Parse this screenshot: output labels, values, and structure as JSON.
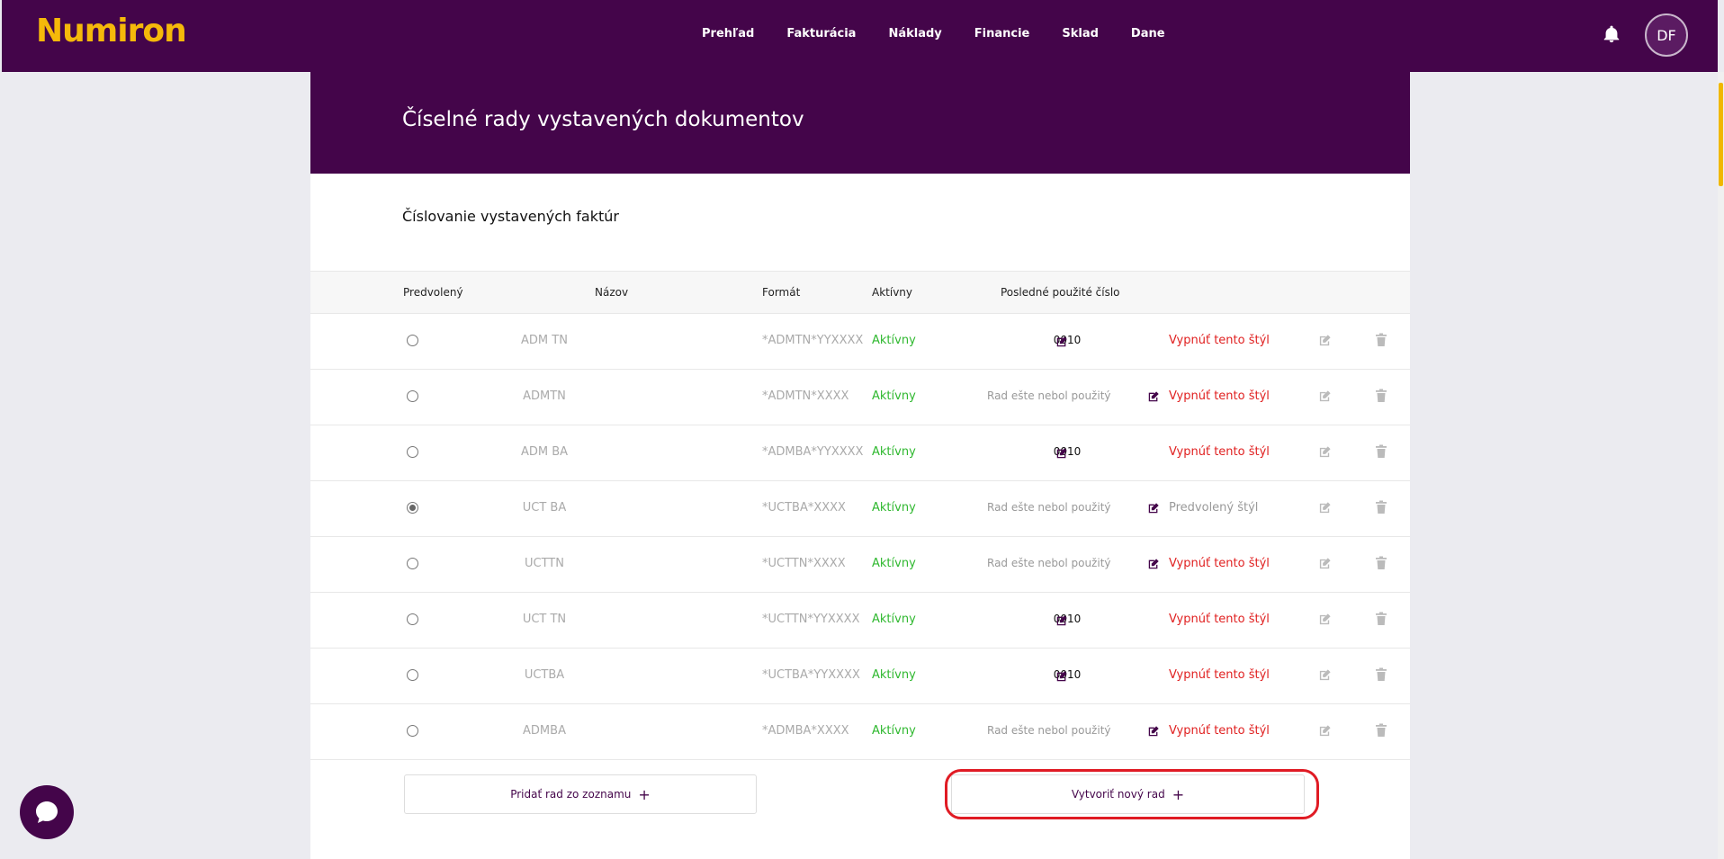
{
  "app": {
    "logo": "Numiron"
  },
  "nav": [
    "Prehľad",
    "Fakturácia",
    "Náklady",
    "Financie",
    "Sklad",
    "Dane"
  ],
  "user": {
    "initials": "DF"
  },
  "page": {
    "title": "Číselné rady vystavených dokumentov",
    "section_title": "Číslovanie vystavených faktúr"
  },
  "table": {
    "headers": {
      "default": "Predvolený",
      "name": "Názov",
      "format": "Formát",
      "active": "Aktívny",
      "last": "Posledné použité číslo"
    },
    "rows": [
      {
        "default": false,
        "name": "ADM TN",
        "format": "*ADMTN*YYXXXX",
        "status": "Aktívny",
        "last": "0010",
        "action": "Vypnúť tento štýl"
      },
      {
        "default": false,
        "name": "ADMTN",
        "format": "*ADMTN*XXXX",
        "status": "Aktívny",
        "last": "Rad ešte nebol použitý",
        "action": "Vypnúť tento štýl"
      },
      {
        "default": false,
        "name": "ADM BA",
        "format": "*ADMBA*YYXXXX",
        "status": "Aktívny",
        "last": "0010",
        "action": "Vypnúť tento štýl"
      },
      {
        "default": true,
        "name": "UCT BA",
        "format": "*UCTBA*XXXX",
        "status": "Aktívny",
        "last": "Rad ešte nebol použitý",
        "action": "Predvolený štýl"
      },
      {
        "default": false,
        "name": "UCTTN",
        "format": "*UCTTN*XXXX",
        "status": "Aktívny",
        "last": "Rad ešte nebol použitý",
        "action": "Vypnúť tento štýl"
      },
      {
        "default": false,
        "name": "UCT TN",
        "format": "*UCTTN*YYXXXX",
        "status": "Aktívny",
        "last": "0010",
        "action": "Vypnúť tento štýl"
      },
      {
        "default": false,
        "name": "UCTBA",
        "format": "*UCTBA*YYXXXX",
        "status": "Aktívny",
        "last": "0010",
        "action": "Vypnúť tento štýl"
      },
      {
        "default": false,
        "name": "ADMBA",
        "format": "*ADMBA*XXXX",
        "status": "Aktívny",
        "last": "Rad ešte nebol použitý",
        "action": "Vypnúť tento štýl"
      }
    ]
  },
  "buttons": {
    "add_from_list": "Pridať rad zo zoznamu",
    "create_new": "Vytvoriť nový rad",
    "plus": "+"
  },
  "colors": {
    "brand": "#44054a",
    "logo": "#f5b90a",
    "active": "#2fb82f",
    "danger": "#e02020",
    "highlight": "#e01b24"
  }
}
